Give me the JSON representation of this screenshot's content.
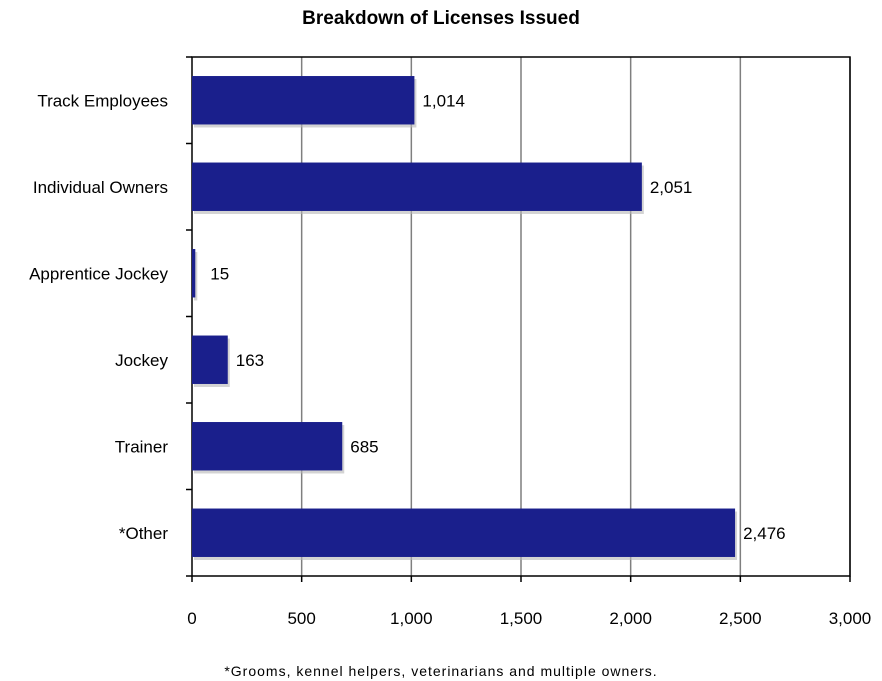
{
  "chart_data": {
    "type": "bar",
    "orientation": "horizontal",
    "title": "Breakdown of Licenses Issued",
    "categories": [
      "Track Employees",
      "Individual Owners",
      "Apprentice Jockey",
      "Jockey",
      "Trainer",
      "*Other"
    ],
    "values": [
      1014,
      2051,
      15,
      163,
      685,
      2476
    ],
    "value_labels": [
      "1,014",
      "2,051",
      "15",
      "163",
      "685",
      "2,476"
    ],
    "xlim": [
      0,
      3000
    ],
    "x_ticks": [
      0,
      500,
      1000,
      1500,
      2000,
      2500,
      3000
    ],
    "x_tick_labels": [
      "0",
      "500",
      "1,000",
      "1,500",
      "2,000",
      "2,500",
      "3,000"
    ],
    "xlabel": "",
    "ylabel": "",
    "grid": "vertical",
    "bar_color": "#1a1f8c",
    "footnote": "*Grooms, kennel helpers, veterinarians and multiple owners."
  }
}
